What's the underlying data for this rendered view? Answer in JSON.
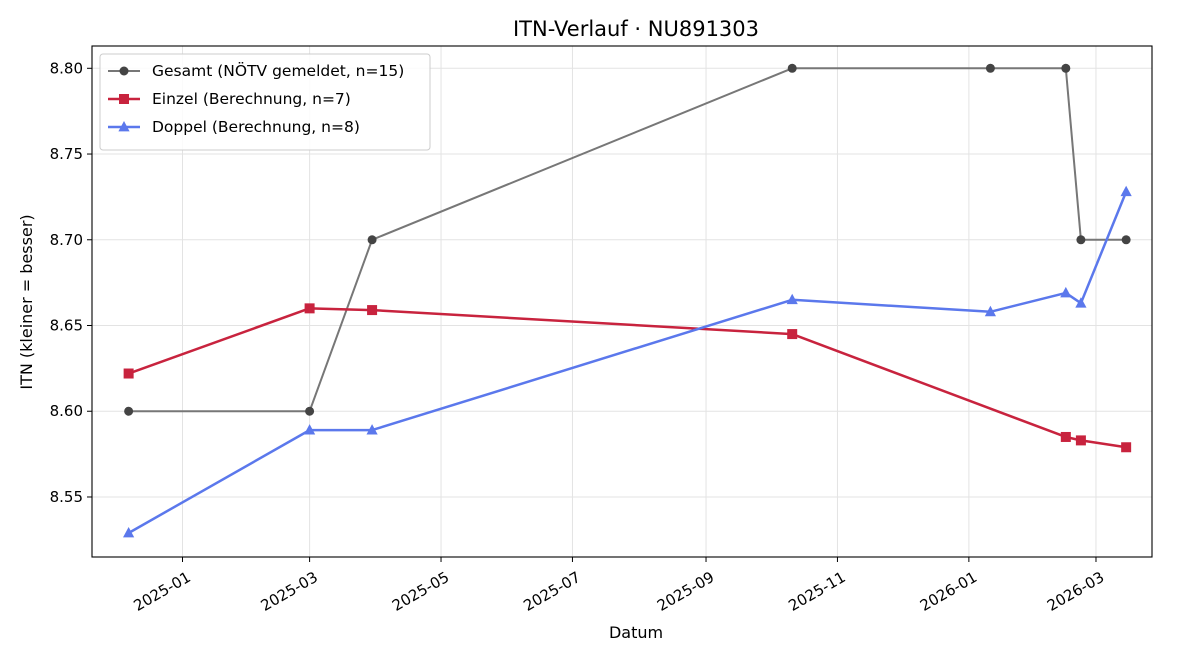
{
  "chart_data": {
    "type": "line",
    "title": "ITN-Verlauf · NU891303",
    "xlabel": "Datum",
    "ylabel": "ITN  (kleiner = besser)",
    "x_type": "date",
    "xlim": [
      "2024-11-20",
      "2026-03-27"
    ],
    "ylim": [
      8.515,
      8.813
    ],
    "x_ticks": [
      "2025-01-01",
      "2025-03-01",
      "2025-05-01",
      "2025-07-01",
      "2025-09-01",
      "2025-11-01",
      "2026-01-01",
      "2026-03-01"
    ],
    "x_tick_labels": [
      "2025-01",
      "2025-03",
      "2025-05",
      "2025-07",
      "2025-09",
      "2025-11",
      "2026-01",
      "2026-03"
    ],
    "y_ticks": [
      8.55,
      8.6,
      8.65,
      8.7,
      8.75,
      8.8
    ],
    "y_tick_labels": [
      "8.55",
      "8.60",
      "8.65",
      "8.70",
      "8.75",
      "8.80"
    ],
    "grid": true,
    "legend_position": "top-left",
    "series": [
      {
        "name": "Gesamt (NÖTV gemeldet, n=15)",
        "color": "#777777",
        "marker_color": "#444444",
        "marker": "circle",
        "points": [
          {
            "x": "2024-12-07",
            "y": 8.6
          },
          {
            "x": "2025-03-01",
            "y": 8.6
          },
          {
            "x": "2025-03-30",
            "y": 8.7
          },
          {
            "x": "2025-10-11",
            "y": 8.8
          },
          {
            "x": "2026-01-11",
            "y": 8.8
          },
          {
            "x": "2026-02-15",
            "y": 8.8
          },
          {
            "x": "2026-02-22",
            "y": 8.7
          },
          {
            "x": "2026-03-15",
            "y": 8.7
          }
        ]
      },
      {
        "name": "Einzel (Berechnung, n=7)",
        "color": "#c8233e",
        "marker_color": "#c8233e",
        "marker": "square",
        "points": [
          {
            "x": "2024-12-07",
            "y": 8.622
          },
          {
            "x": "2025-03-01",
            "y": 8.66
          },
          {
            "x": "2025-03-30",
            "y": 8.659
          },
          {
            "x": "2025-10-11",
            "y": 8.645
          },
          {
            "x": "2026-02-15",
            "y": 8.585
          },
          {
            "x": "2026-02-22",
            "y": 8.583
          },
          {
            "x": "2026-03-15",
            "y": 8.579
          }
        ]
      },
      {
        "name": "Doppel (Berechnung, n=8)",
        "color": "#5b78ec",
        "marker_color": "#5b78ec",
        "marker": "triangle",
        "points": [
          {
            "x": "2024-12-07",
            "y": 8.529
          },
          {
            "x": "2025-03-01",
            "y": 8.589
          },
          {
            "x": "2025-03-30",
            "y": 8.589
          },
          {
            "x": "2025-10-11",
            "y": 8.665
          },
          {
            "x": "2026-01-11",
            "y": 8.658
          },
          {
            "x": "2026-02-15",
            "y": 8.669
          },
          {
            "x": "2026-02-22",
            "y": 8.663
          },
          {
            "x": "2026-03-15",
            "y": 8.728
          }
        ]
      }
    ]
  }
}
